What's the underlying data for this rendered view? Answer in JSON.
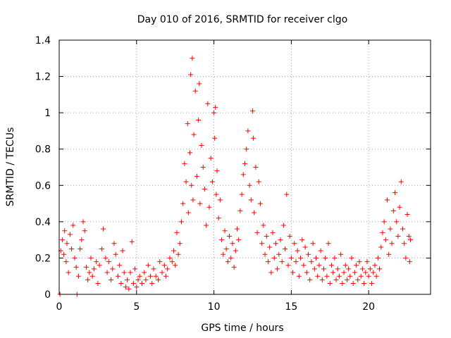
{
  "chart_data": {
    "type": "scatter",
    "title": "Day 010 of 2016, SRMTID for receiver clgo",
    "xlabel": "GPS time / hours",
    "ylabel": "SRMTID / TECUs",
    "xlim": [
      0,
      24
    ],
    "ylim": [
      0,
      1.4
    ],
    "xticks": [
      0,
      5,
      10,
      15,
      20
    ],
    "yticks": [
      0,
      0.2,
      0.4,
      0.6,
      0.8,
      1,
      1.2,
      1.4
    ],
    "xtick_labels": [
      "0",
      "5",
      "10",
      "15",
      "20"
    ],
    "ytick_labels": [
      "0",
      "0.2",
      "0.4",
      "0.6",
      "0.8",
      "1",
      "1.2",
      "1.4"
    ],
    "grid": true,
    "marker": "plus",
    "color": "#ff0000",
    "series": [
      {
        "name": "SRMTID",
        "points": [
          [
            0.05,
            0.0
          ],
          [
            0.1,
            0.24
          ],
          [
            0.2,
            0.3
          ],
          [
            0.3,
            0.22
          ],
          [
            0.35,
            0.35
          ],
          [
            0.45,
            0.18
          ],
          [
            0.5,
            0.28
          ],
          [
            0.6,
            0.12
          ],
          [
            0.7,
            0.33
          ],
          [
            0.8,
            0.25
          ],
          [
            0.9,
            0.38
          ],
          [
            1.0,
            0.2
          ],
          [
            1.1,
            0.15
          ],
          [
            1.15,
            0.0
          ],
          [
            1.25,
            0.1
          ],
          [
            1.35,
            0.25
          ],
          [
            1.45,
            0.3
          ],
          [
            1.55,
            0.4
          ],
          [
            1.65,
            0.35
          ],
          [
            1.75,
            0.15
          ],
          [
            1.85,
            0.08
          ],
          [
            1.95,
            0.12
          ],
          [
            2.05,
            0.2
          ],
          [
            2.15,
            0.1
          ],
          [
            2.25,
            0.14
          ],
          [
            2.4,
            0.18
          ],
          [
            2.5,
            0.06
          ],
          [
            2.6,
            0.16
          ],
          [
            2.75,
            0.25
          ],
          [
            2.85,
            0.36
          ],
          [
            3.0,
            0.2
          ],
          [
            3.1,
            0.12
          ],
          [
            3.2,
            0.18
          ],
          [
            3.35,
            0.08
          ],
          [
            3.45,
            0.14
          ],
          [
            3.55,
            0.28
          ],
          [
            3.65,
            0.22
          ],
          [
            3.8,
            0.1
          ],
          [
            3.9,
            0.16
          ],
          [
            4.0,
            0.06
          ],
          [
            4.1,
            0.24
          ],
          [
            4.2,
            0.12
          ],
          [
            4.3,
            0.04
          ],
          [
            4.4,
            0.08
          ],
          [
            4.5,
            0.03
          ],
          [
            4.6,
            0.12
          ],
          [
            4.7,
            0.29
          ],
          [
            4.8,
            0.06
          ],
          [
            4.9,
            0.14
          ],
          [
            5.0,
            0.04
          ],
          [
            5.1,
            0.08
          ],
          [
            5.2,
            0.1
          ],
          [
            5.35,
            0.06
          ],
          [
            5.5,
            0.12
          ],
          [
            5.6,
            0.08
          ],
          [
            5.75,
            0.16
          ],
          [
            5.9,
            0.1
          ],
          [
            6.0,
            0.06
          ],
          [
            6.1,
            0.14
          ],
          [
            6.25,
            0.1
          ],
          [
            6.4,
            0.08
          ],
          [
            6.5,
            0.18
          ],
          [
            6.65,
            0.12
          ],
          [
            6.8,
            0.16
          ],
          [
            6.9,
            0.1
          ],
          [
            7.0,
            0.14
          ],
          [
            7.15,
            0.2
          ],
          [
            7.3,
            0.18
          ],
          [
            7.4,
            0.24
          ],
          [
            7.5,
            0.16
          ],
          [
            7.6,
            0.34
          ],
          [
            7.7,
            0.22
          ],
          [
            7.8,
            0.28
          ],
          [
            7.9,
            0.4
          ],
          [
            8.0,
            0.5
          ],
          [
            8.1,
            0.72
          ],
          [
            8.2,
            0.62
          ],
          [
            8.3,
            0.94
          ],
          [
            8.35,
            0.45
          ],
          [
            8.45,
            0.78
          ],
          [
            8.5,
            1.21
          ],
          [
            8.55,
            0.6
          ],
          [
            8.6,
            1.3
          ],
          [
            8.65,
            0.52
          ],
          [
            8.7,
            0.88
          ],
          [
            8.8,
            1.12
          ],
          [
            8.9,
            0.65
          ],
          [
            9.0,
            0.96
          ],
          [
            9.05,
            1.16
          ],
          [
            9.1,
            0.5
          ],
          [
            9.2,
            0.82
          ],
          [
            9.3,
            0.7
          ],
          [
            9.4,
            0.58
          ],
          [
            9.5,
            0.38
          ],
          [
            9.6,
            1.05
          ],
          [
            9.7,
            0.48
          ],
          [
            9.8,
            0.75
          ],
          [
            9.9,
            0.62
          ],
          [
            10.0,
            1.0
          ],
          [
            10.05,
            0.86
          ],
          [
            10.1,
            1.03
          ],
          [
            10.15,
            0.55
          ],
          [
            10.2,
            0.68
          ],
          [
            10.3,
            0.42
          ],
          [
            10.4,
            0.52
          ],
          [
            10.5,
            0.3
          ],
          [
            10.6,
            0.22
          ],
          [
            10.7,
            0.35
          ],
          [
            10.8,
            0.25
          ],
          [
            10.9,
            0.18
          ],
          [
            11.0,
            0.32
          ],
          [
            11.1,
            0.2
          ],
          [
            11.2,
            0.28
          ],
          [
            11.3,
            0.15
          ],
          [
            11.4,
            0.24
          ],
          [
            11.5,
            0.36
          ],
          [
            11.6,
            0.3
          ],
          [
            11.7,
            0.46
          ],
          [
            11.8,
            0.55
          ],
          [
            11.9,
            0.66
          ],
          [
            12.0,
            0.72
          ],
          [
            12.1,
            0.8
          ],
          [
            12.2,
            0.9
          ],
          [
            12.3,
            0.6
          ],
          [
            12.4,
            0.52
          ],
          [
            12.5,
            1.01
          ],
          [
            12.55,
            0.86
          ],
          [
            12.6,
            0.45
          ],
          [
            12.7,
            0.7
          ],
          [
            12.8,
            0.34
          ],
          [
            12.9,
            0.62
          ],
          [
            13.0,
            0.5
          ],
          [
            13.1,
            0.28
          ],
          [
            13.2,
            0.38
          ],
          [
            13.3,
            0.22
          ],
          [
            13.4,
            0.32
          ],
          [
            13.5,
            0.18
          ],
          [
            13.6,
            0.26
          ],
          [
            13.7,
            0.12
          ],
          [
            13.8,
            0.34
          ],
          [
            13.9,
            0.2
          ],
          [
            14.0,
            0.28
          ],
          [
            14.1,
            0.14
          ],
          [
            14.2,
            0.22
          ],
          [
            14.3,
            0.3
          ],
          [
            14.4,
            0.18
          ],
          [
            14.5,
            0.38
          ],
          [
            14.6,
            0.25
          ],
          [
            14.7,
            0.55
          ],
          [
            14.8,
            0.16
          ],
          [
            14.9,
            0.32
          ],
          [
            15.0,
            0.2
          ],
          [
            15.1,
            0.12
          ],
          [
            15.2,
            0.28
          ],
          [
            15.3,
            0.18
          ],
          [
            15.4,
            0.24
          ],
          [
            15.5,
            0.1
          ],
          [
            15.6,
            0.2
          ],
          [
            15.7,
            0.3
          ],
          [
            15.8,
            0.16
          ],
          [
            15.9,
            0.26
          ],
          [
            16.0,
            0.12
          ],
          [
            16.1,
            0.22
          ],
          [
            16.2,
            0.08
          ],
          [
            16.3,
            0.18
          ],
          [
            16.4,
            0.28
          ],
          [
            16.5,
            0.14
          ],
          [
            16.6,
            0.2
          ],
          [
            16.7,
            0.1
          ],
          [
            16.8,
            0.16
          ],
          [
            16.9,
            0.24
          ],
          [
            17.0,
            0.08
          ],
          [
            17.1,
            0.14
          ],
          [
            17.2,
            0.2
          ],
          [
            17.3,
            0.1
          ],
          [
            17.4,
            0.28
          ],
          [
            17.5,
            0.06
          ],
          [
            17.6,
            0.16
          ],
          [
            17.7,
            0.12
          ],
          [
            17.8,
            0.2
          ],
          [
            17.9,
            0.08
          ],
          [
            18.0,
            0.14
          ],
          [
            18.1,
            0.1
          ],
          [
            18.2,
            0.22
          ],
          [
            18.3,
            0.06
          ],
          [
            18.4,
            0.12
          ],
          [
            18.5,
            0.16
          ],
          [
            18.6,
            0.08
          ],
          [
            18.7,
            0.14
          ],
          [
            18.8,
            0.1
          ],
          [
            18.9,
            0.2
          ],
          [
            19.0,
            0.06
          ],
          [
            19.1,
            0.12
          ],
          [
            19.2,
            0.16
          ],
          [
            19.3,
            0.08
          ],
          [
            19.4,
            0.18
          ],
          [
            19.5,
            0.1
          ],
          [
            19.6,
            0.14
          ],
          [
            19.7,
            0.06
          ],
          [
            19.8,
            0.12
          ],
          [
            19.9,
            0.18
          ],
          [
            20.0,
            0.1
          ],
          [
            20.1,
            0.14
          ],
          [
            20.2,
            0.06
          ],
          [
            20.3,
            0.12
          ],
          [
            20.4,
            0.16
          ],
          [
            20.5,
            0.1
          ],
          [
            20.6,
            0.2
          ],
          [
            20.7,
            0.14
          ],
          [
            20.8,
            0.26
          ],
          [
            20.9,
            0.34
          ],
          [
            21.0,
            0.4
          ],
          [
            21.1,
            0.3
          ],
          [
            21.2,
            0.52
          ],
          [
            21.3,
            0.22
          ],
          [
            21.4,
            0.36
          ],
          [
            21.5,
            0.28
          ],
          [
            21.6,
            0.46
          ],
          [
            21.7,
            0.56
          ],
          [
            21.8,
            0.4
          ],
          [
            21.9,
            0.32
          ],
          [
            22.0,
            0.48
          ],
          [
            22.1,
            0.62
          ],
          [
            22.2,
            0.36
          ],
          [
            22.3,
            0.28
          ],
          [
            22.4,
            0.2
          ],
          [
            22.5,
            0.44
          ],
          [
            22.6,
            0.32
          ],
          [
            22.65,
            0.18
          ],
          [
            22.7,
            0.3
          ]
        ]
      }
    ]
  }
}
